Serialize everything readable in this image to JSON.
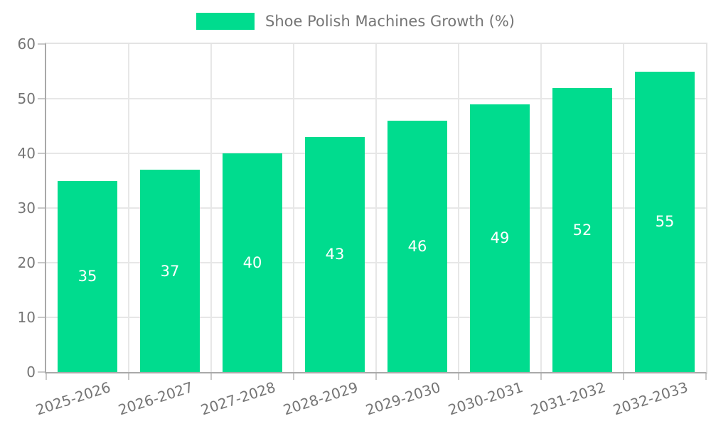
{
  "legend": {
    "label": "Shoe Polish Machines Growth (%)"
  },
  "chart_data": {
    "type": "bar",
    "title": "",
    "xlabel": "",
    "ylabel": "",
    "categories": [
      "2025-2026",
      "2026-2027",
      "2027-2028",
      "2028-2029",
      "2029-2030",
      "2030-2031",
      "2031-2032",
      "2032-2033"
    ],
    "values": [
      35,
      37,
      40,
      43,
      46,
      49,
      52,
      55
    ],
    "series_name": "Shoe Polish Machines Growth (%)",
    "ylim": [
      0,
      60
    ],
    "yticks": [
      0,
      10,
      20,
      30,
      40,
      50,
      60
    ],
    "grid": true,
    "legend_position": "top-center",
    "bar_color": "#00DC8E",
    "value_label_color": "#ffffff",
    "tick_label_color": "#757575",
    "gridline_color": "#e7e7e7",
    "axis_line_color": "#a9a9a9"
  }
}
